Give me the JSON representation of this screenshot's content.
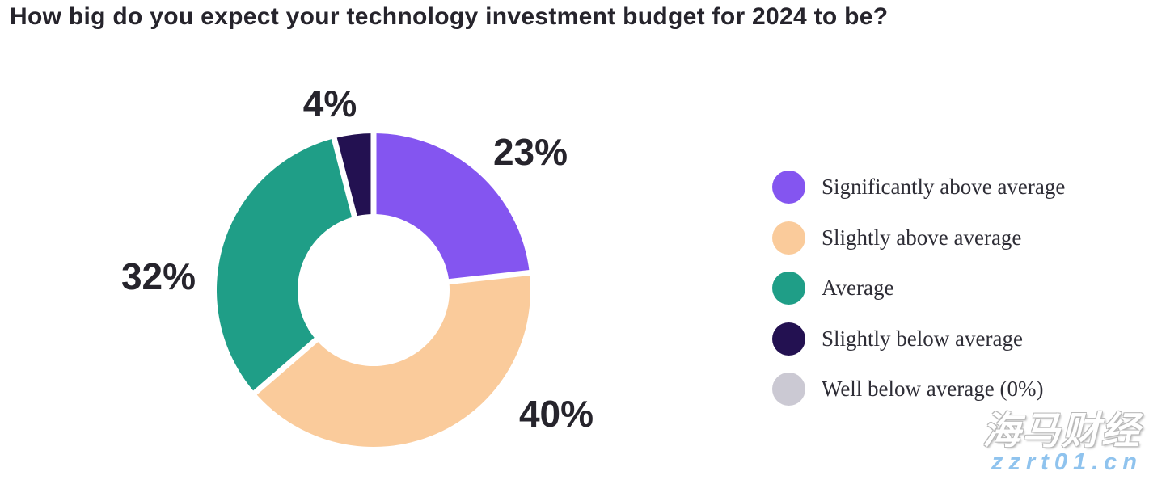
{
  "title": "How big do you expect your technology investment budget for 2024 to be?",
  "chart_data": {
    "type": "pie",
    "subtype": "donut",
    "title": "How big do you expect your technology investment budget for 2024 to be?",
    "direction": "clockwise",
    "start_angle_deg": 0,
    "inner_radius_ratio": 0.48,
    "legend_position": "right",
    "units": "percent",
    "segments": [
      {
        "label": "Significantly above average",
        "value": 23,
        "pct_label": "23%",
        "color": "#8455F0"
      },
      {
        "label": "Slightly above average",
        "value": 40,
        "pct_label": "40%",
        "color": "#FACB9B"
      },
      {
        "label": "Average",
        "value": 32,
        "pct_label": "32%",
        "color": "#1F9E87"
      },
      {
        "label": "Slightly below average",
        "value": 4,
        "pct_label": "4%",
        "color": "#231151"
      },
      {
        "label": "Well below average (0%)",
        "value": 0,
        "pct_label": "0%",
        "color": "#CBC9D3"
      }
    ]
  },
  "watermark": {
    "line1": "海马财经",
    "line2": "zzrt01.cn",
    "line2_color": "#8FC3EE"
  },
  "colors": {
    "background": "#FFFFFF",
    "title_text": "#26242C",
    "slice_label_text": "#26242C",
    "legend_text": "#2E2D36",
    "slice_gap": "#FFFFFF"
  }
}
